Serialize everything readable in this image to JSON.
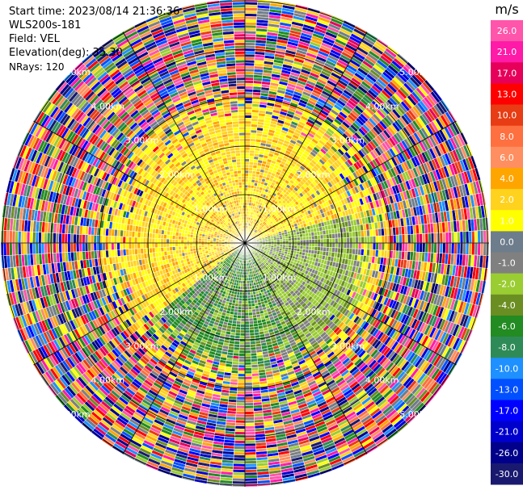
{
  "header": {
    "start_time": "Start time: 2023/08/14 21:36:36",
    "instrument": "WLS200s-181",
    "field": "Field: VEL",
    "elevation": "Elevation(deg): 35.30",
    "nrays": "NRays: 120"
  },
  "range_rings": [
    {
      "km": 1,
      "label": "1.00km"
    },
    {
      "km": 2,
      "label": "2.00km"
    },
    {
      "km": 3,
      "label": "3.00km"
    },
    {
      "km": 4,
      "label": "4.00km"
    },
    {
      "km": 5,
      "label": "5.00km"
    }
  ],
  "colorbar": {
    "unit": "m/s",
    "ticks": [
      "26.0",
      "21.0",
      "17.0",
      "13.0",
      "10.0",
      "8.0",
      "6.0",
      "4.0",
      "2.0",
      "1.0",
      "0.0",
      "-1.0",
      "-2.0",
      "-4.0",
      "-6.0",
      "-8.0",
      "-10.0",
      "-13.0",
      "-17.0",
      "-21.0",
      "-26.0",
      "-30.0"
    ],
    "colors": [
      "#ff55aa",
      "#ff1aa8",
      "#e6005a",
      "#ff0000",
      "#e83c14",
      "#ff7040",
      "#ff8f60",
      "#ffa500",
      "#ffd21e",
      "#ffff00",
      "#6e7d8c",
      "#808080",
      "#9acd32",
      "#6b8e23",
      "#228b22",
      "#2e8b57",
      "#1e90ff",
      "#0050ff",
      "#0000ff",
      "#0000cd",
      "#00008b",
      "#191970"
    ]
  }
}
